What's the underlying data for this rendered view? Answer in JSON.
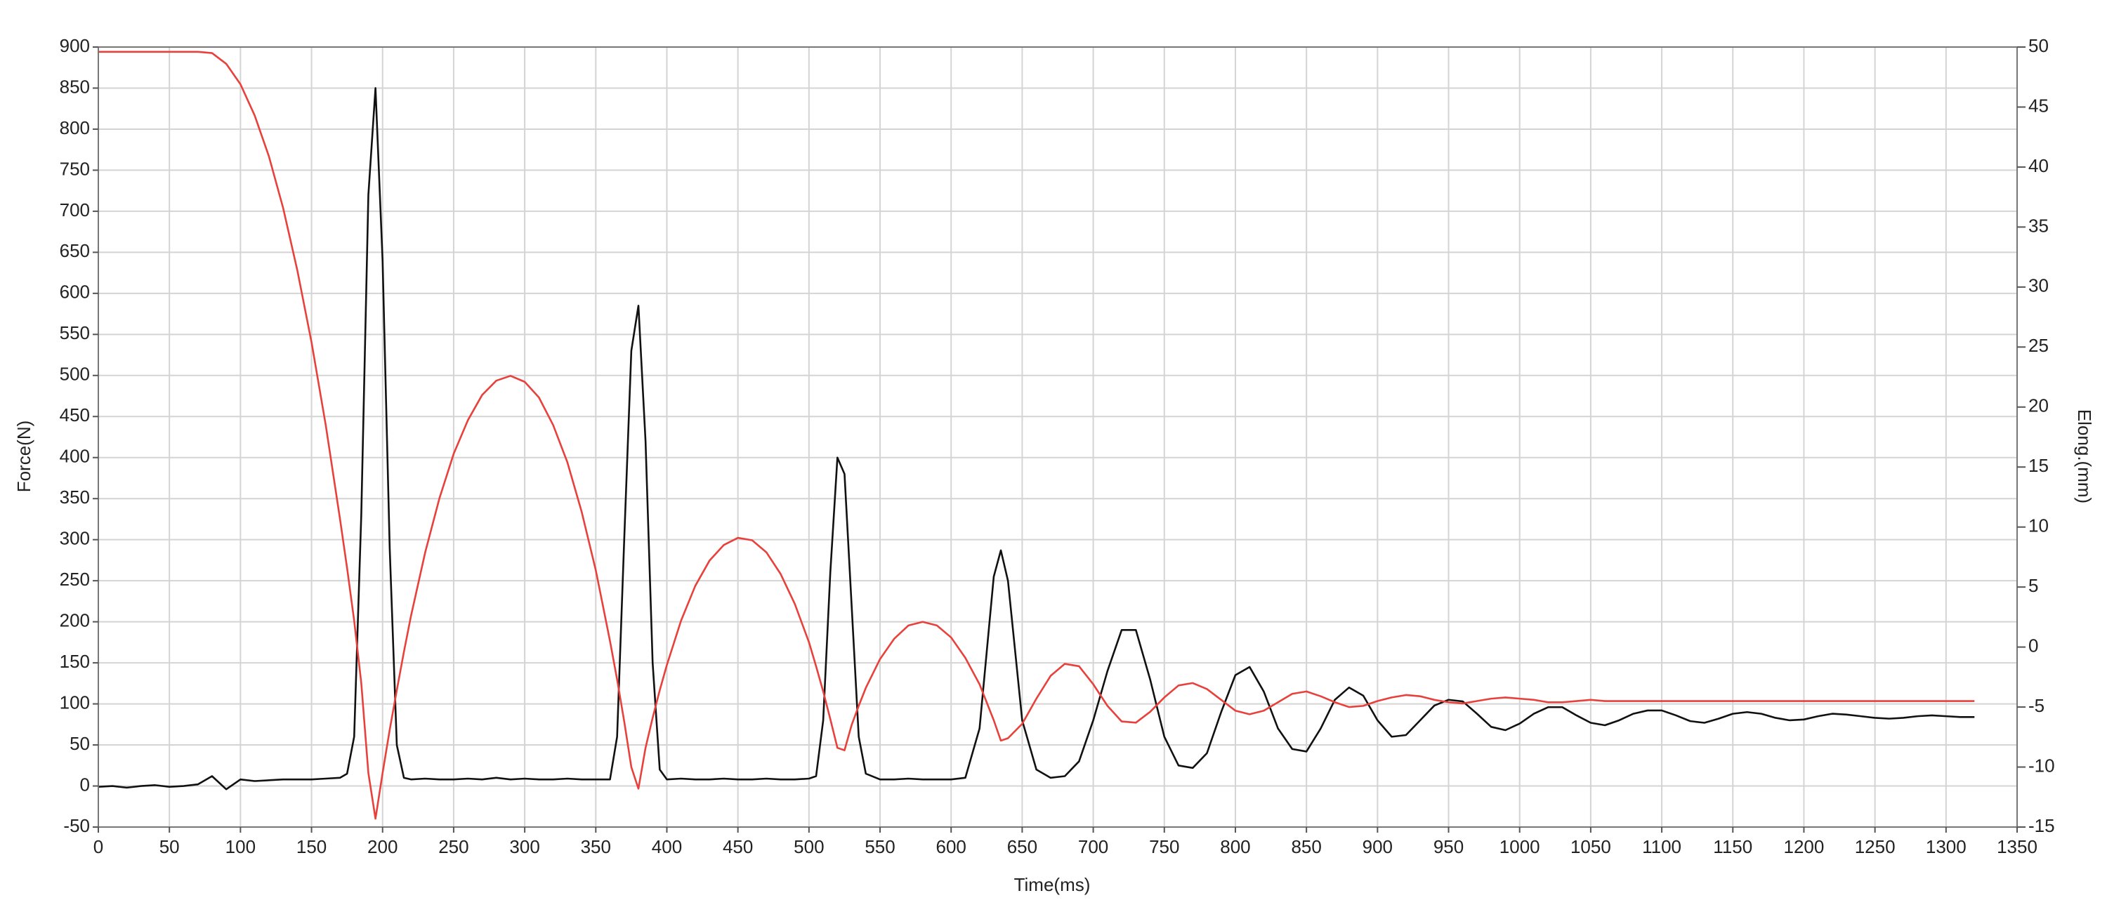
{
  "chart_data": {
    "type": "line",
    "x_label": "Time(ms)",
    "y_label": "Force(N)",
    "y2_label": "Elong.(mm)",
    "grid": true,
    "xlim": [
      0,
      1350
    ],
    "xticks": [
      0,
      50,
      100,
      150,
      200,
      250,
      300,
      350,
      400,
      450,
      500,
      550,
      600,
      650,
      700,
      750,
      800,
      850,
      900,
      950,
      1000,
      1050,
      1100,
      1150,
      1200,
      1250,
      1300,
      1350
    ],
    "ylim": [
      -50,
      900
    ],
    "yticks": [
      -50,
      0,
      50,
      100,
      150,
      200,
      250,
      300,
      350,
      400,
      450,
      500,
      550,
      600,
      650,
      700,
      750,
      800,
      850,
      900
    ],
    "y2lim": [
      -15,
      50
    ],
    "y2ticks": [
      -15,
      -10,
      -5,
      0,
      5,
      10,
      15,
      20,
      25,
      30,
      35,
      40,
      45,
      50
    ],
    "x": [
      0,
      10,
      20,
      30,
      40,
      50,
      60,
      70,
      80,
      90,
      100,
      110,
      120,
      130,
      140,
      150,
      160,
      170,
      175,
      180,
      185,
      190,
      195,
      200,
      205,
      210,
      215,
      220,
      230,
      240,
      250,
      260,
      270,
      280,
      290,
      300,
      310,
      320,
      330,
      340,
      350,
      360,
      365,
      370,
      375,
      380,
      385,
      390,
      395,
      400,
      410,
      420,
      430,
      440,
      450,
      460,
      470,
      480,
      490,
      500,
      505,
      510,
      515,
      520,
      525,
      530,
      535,
      540,
      550,
      560,
      570,
      580,
      590,
      600,
      610,
      620,
      630,
      635,
      640,
      650,
      660,
      670,
      680,
      690,
      700,
      710,
      720,
      730,
      740,
      750,
      760,
      770,
      780,
      790,
      800,
      810,
      820,
      830,
      840,
      850,
      860,
      870,
      880,
      890,
      900,
      910,
      920,
      930,
      940,
      950,
      960,
      970,
      980,
      990,
      1000,
      1010,
      1020,
      1030,
      1040,
      1050,
      1060,
      1070,
      1080,
      1090,
      1100,
      1110,
      1120,
      1130,
      1140,
      1150,
      1160,
      1170,
      1180,
      1190,
      1200,
      1210,
      1220,
      1230,
      1240,
      1250,
      1260,
      1270,
      1280,
      1290,
      1300,
      1310,
      1320
    ],
    "series": [
      {
        "color": "#111111",
        "axis": "y",
        "values": [
          -1,
          0,
          -2,
          0,
          1,
          -1,
          0,
          2,
          12,
          -4,
          8,
          6,
          7,
          8,
          8,
          8,
          9,
          10,
          15,
          60,
          330,
          720,
          850,
          640,
          290,
          50,
          10,
          8,
          9,
          8,
          8,
          9,
          8,
          10,
          8,
          9,
          8,
          8,
          9,
          8,
          8,
          8,
          60,
          300,
          530,
          585,
          420,
          150,
          20,
          8,
          9,
          8,
          8,
          9,
          8,
          8,
          9,
          8,
          8,
          9,
          12,
          80,
          260,
          400,
          380,
          220,
          60,
          15,
          8,
          8,
          9,
          8,
          8,
          8,
          10,
          70,
          255,
          287,
          250,
          80,
          20,
          10,
          12,
          30,
          80,
          140,
          190,
          190,
          130,
          60,
          25,
          22,
          40,
          90,
          135,
          145,
          115,
          70,
          45,
          42,
          70,
          105,
          120,
          110,
          80,
          60,
          62,
          80,
          98,
          105,
          103,
          88,
          72,
          68,
          76,
          88,
          96,
          96,
          86,
          77,
          74,
          80,
          88,
          92,
          92,
          86,
          79,
          77,
          82,
          88,
          90,
          88,
          83,
          80,
          81,
          85,
          88,
          87,
          85,
          83,
          82,
          83,
          85,
          86,
          85,
          84,
          84
        ]
      },
      {
        "color": "#e8413c",
        "axis": "y2",
        "values": [
          49.6,
          49.6,
          49.6,
          49.6,
          49.6,
          49.6,
          49.6,
          49.6,
          49.5,
          48.6,
          46.9,
          44.3,
          40.9,
          36.6,
          31.4,
          25.4,
          18.5,
          10.7,
          6.6,
          2.2,
          -3.0,
          -10.5,
          -14.3,
          -10.5,
          -6.9,
          -3.6,
          -0.4,
          2.6,
          7.9,
          12.4,
          16.1,
          18.9,
          21.0,
          22.2,
          22.6,
          22.1,
          20.8,
          18.5,
          15.4,
          11.3,
          6.4,
          0.5,
          -2.7,
          -6.2,
          -10.0,
          -11.8,
          -8.4,
          -5.9,
          -3.6,
          -1.5,
          2.2,
          5.1,
          7.2,
          8.5,
          9.1,
          8.9,
          7.9,
          6.1,
          3.6,
          0.4,
          -1.6,
          -3.7,
          -6.0,
          -8.4,
          -8.6,
          -6.5,
          -4.9,
          -3.4,
          -1.0,
          0.7,
          1.8,
          2.1,
          1.8,
          0.8,
          -0.9,
          -3.1,
          -6.1,
          -7.8,
          -7.6,
          -6.4,
          -4.3,
          -2.4,
          -1.4,
          -1.6,
          -3.1,
          -4.9,
          -6.2,
          -6.3,
          -5.4,
          -4.2,
          -3.2,
          -3.0,
          -3.5,
          -4.4,
          -5.3,
          -5.6,
          -5.3,
          -4.6,
          -3.9,
          -3.7,
          -4.1,
          -4.6,
          -5.0,
          -4.9,
          -4.5,
          -4.2,
          -4.0,
          -4.1,
          -4.4,
          -4.6,
          -4.7,
          -4.5,
          -4.3,
          -4.2,
          -4.3,
          -4.4,
          -4.6,
          -4.6,
          -4.5,
          -4.4,
          -4.5,
          -4.5,
          -4.5,
          -4.5,
          -4.5,
          -4.5,
          -4.5,
          -4.5,
          -4.5,
          -4.5,
          -4.5,
          -4.5,
          -4.5,
          -4.5,
          -4.5,
          -4.5,
          -4.5,
          -4.5,
          -4.5,
          -4.5,
          -4.5,
          -4.5,
          -4.5,
          -4.5,
          -4.5,
          -4.5,
          -4.5
        ]
      }
    ]
  }
}
